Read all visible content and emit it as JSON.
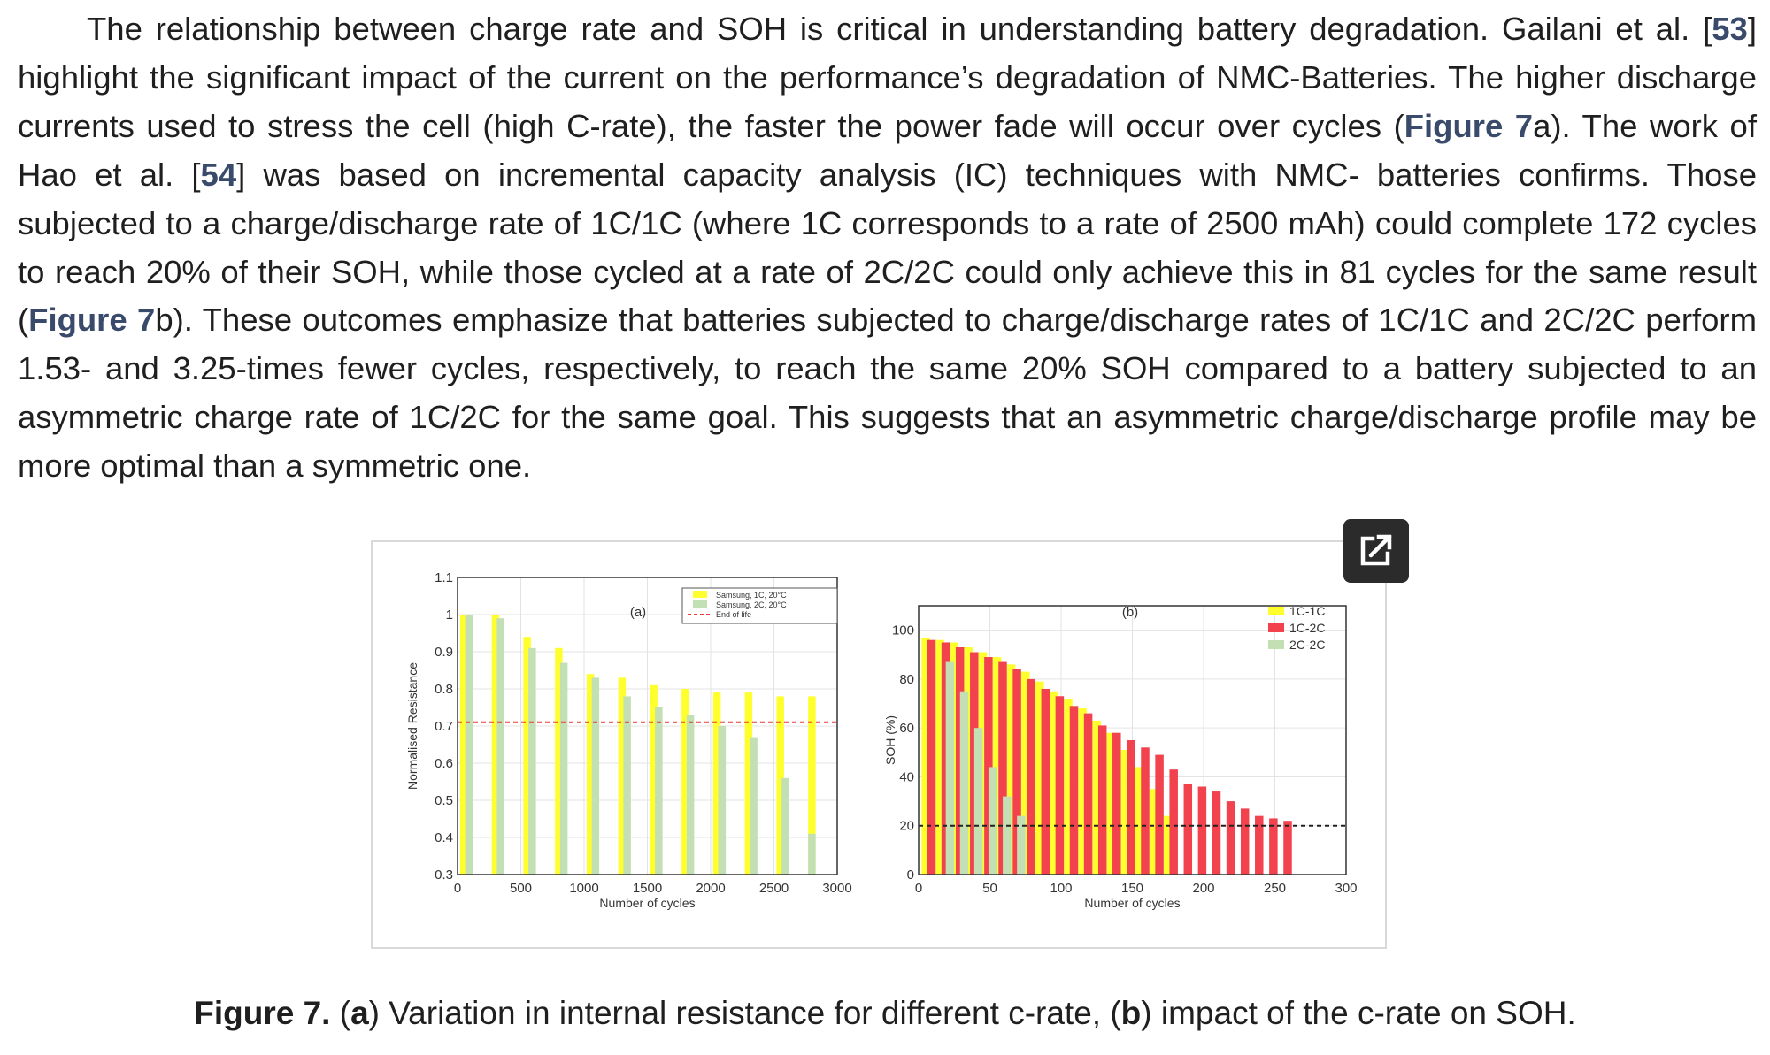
{
  "paragraph": {
    "s1": "The relationship between charge rate and SOH is critical in understanding battery degradation. Gailani et al. [",
    "ref53": "53",
    "s2": "] highlight the significant impact of the current on the performance’s degradation of NMC-Batteries. The higher discharge currents used to stress the cell (high C-rate), the faster the power fade will occur over cycles (",
    "fig7_a": "Figure 7",
    "s3": "a). The work of Hao et al. [",
    "ref54": "54",
    "s4": "] was based on incremental capacity analysis (IC) techniques with NMC- batteries confirms. Those subjected to a charge/discharge rate of 1C/1C (where 1C corresponds to a rate of 2500 mAh) could complete 172 cycles to reach 20% of their SOH, while those cycled at a rate of 2C/2C could only achieve this in 81 cycles for the same result (",
    "fig7_b": "Figure 7",
    "s5": "b). These outcomes emphasize that batteries subjected to charge/discharge rates of 1C/1C and 2C/2C perform 1.53- and 3.25-times fewer cycles, respectively, to reach the same 20% SOH compared to a battery subjected to an asymmetric charge rate of 1C/2C for the same goal. This suggests that an asymmetric charge/discharge profile may be more optimal than a symmetric one."
  },
  "expand_icon": "external-link-icon",
  "caption": {
    "label": "Figure 7.",
    "open1": " (",
    "a": "a",
    "t1": ") Variation in internal resistance for different c-rate, (",
    "b": "b",
    "t2": ") impact of the c-rate on SOH."
  },
  "colors": {
    "yellow": "#ffff2e",
    "green": "#c2e0b4",
    "red": "#f2424e",
    "ref": "#3a4a6b"
  },
  "chart_data": [
    {
      "type": "bar",
      "panel_label": "(a)",
      "xlabel": "Number of cycles",
      "ylabel": "Normalised Resistance",
      "xlim": [
        0,
        3000
      ],
      "ylim": [
        0.3,
        1.1
      ],
      "xticks": [
        "0",
        "500",
        "1000",
        "1500",
        "2000",
        "2500",
        "3000"
      ],
      "yticks": [
        "0.3",
        "0.4",
        "0.5",
        "0.6",
        "0.7",
        "0.8",
        "0.9",
        "1",
        "1.1"
      ],
      "grid": true,
      "legend_position": "top-right",
      "reference_line": {
        "name": "End of life",
        "y": 0.71,
        "color": "#e83a3a"
      },
      "series": [
        {
          "name": "Samsung, 1C, 20°C",
          "color": "#ffff2e",
          "x": [
            50,
            300,
            550,
            800,
            1050,
            1300,
            1550,
            1800,
            2050,
            2300,
            2550,
            2800
          ],
          "values": [
            1.0,
            1.0,
            0.94,
            0.91,
            0.84,
            0.83,
            0.81,
            0.8,
            0.79,
            0.79,
            0.78,
            0.78
          ]
        },
        {
          "name": "Samsung, 2C, 20°C",
          "color": "#c2e0b4",
          "x": [
            90,
            340,
            590,
            840,
            1090,
            1340,
            1590,
            1840,
            2090,
            2340,
            2590
          ],
          "values": [
            1.0,
            0.99,
            0.91,
            0.87,
            0.83,
            0.78,
            0.75,
            0.73,
            0.7,
            0.67,
            0.56
          ]
        },
        {
          "name": "",
          "color": "#c2e0b4",
          "x": [
            2800
          ],
          "values": [
            0.41
          ]
        }
      ]
    },
    {
      "type": "bar",
      "panel_label": "(b)",
      "xlabel": "Number of cycles",
      "ylabel": "SOH (%)",
      "xlim": [
        0,
        300
      ],
      "ylim": [
        0,
        110
      ],
      "xticks": [
        "0",
        "50",
        "100",
        "150",
        "200",
        "250",
        "300"
      ],
      "yticks": [
        "0",
        "20",
        "40",
        "60",
        "80",
        "100"
      ],
      "grid": true,
      "legend_position": "top-right",
      "reference_line": {
        "name": "",
        "y": 20,
        "color": "#222222"
      },
      "series": [
        {
          "name": "1C-1C",
          "color": "#ffff2e",
          "x": [
            5,
            15,
            25,
            35,
            45,
            55,
            65,
            75,
            85,
            95,
            105,
            115,
            125,
            135,
            145,
            155,
            165,
            175
          ],
          "values": [
            97,
            96,
            95,
            93,
            91,
            89,
            86,
            83,
            79,
            75,
            72,
            68,
            63,
            58,
            51,
            44,
            35,
            24
          ]
        },
        {
          "name": "1C-2C",
          "color": "#f2424e",
          "x": [
            9,
            19,
            29,
            39,
            49,
            59,
            69,
            79,
            89,
            99,
            109,
            119,
            129,
            139,
            149,
            159,
            169,
            179,
            189,
            199,
            209,
            219,
            229,
            239,
            249,
            259
          ],
          "values": [
            96,
            95,
            93,
            91,
            89,
            87,
            84,
            80,
            76,
            73,
            69,
            66,
            61,
            58,
            55,
            52,
            49,
            43,
            37,
            36,
            34,
            30,
            27,
            24,
            23,
            22
          ]
        },
        {
          "name": "2C-2C",
          "color": "#c2e0b4",
          "x": [
            22,
            32,
            42,
            52,
            62,
            72
          ],
          "values": [
            87,
            75,
            60,
            44,
            32,
            24
          ]
        }
      ]
    }
  ]
}
